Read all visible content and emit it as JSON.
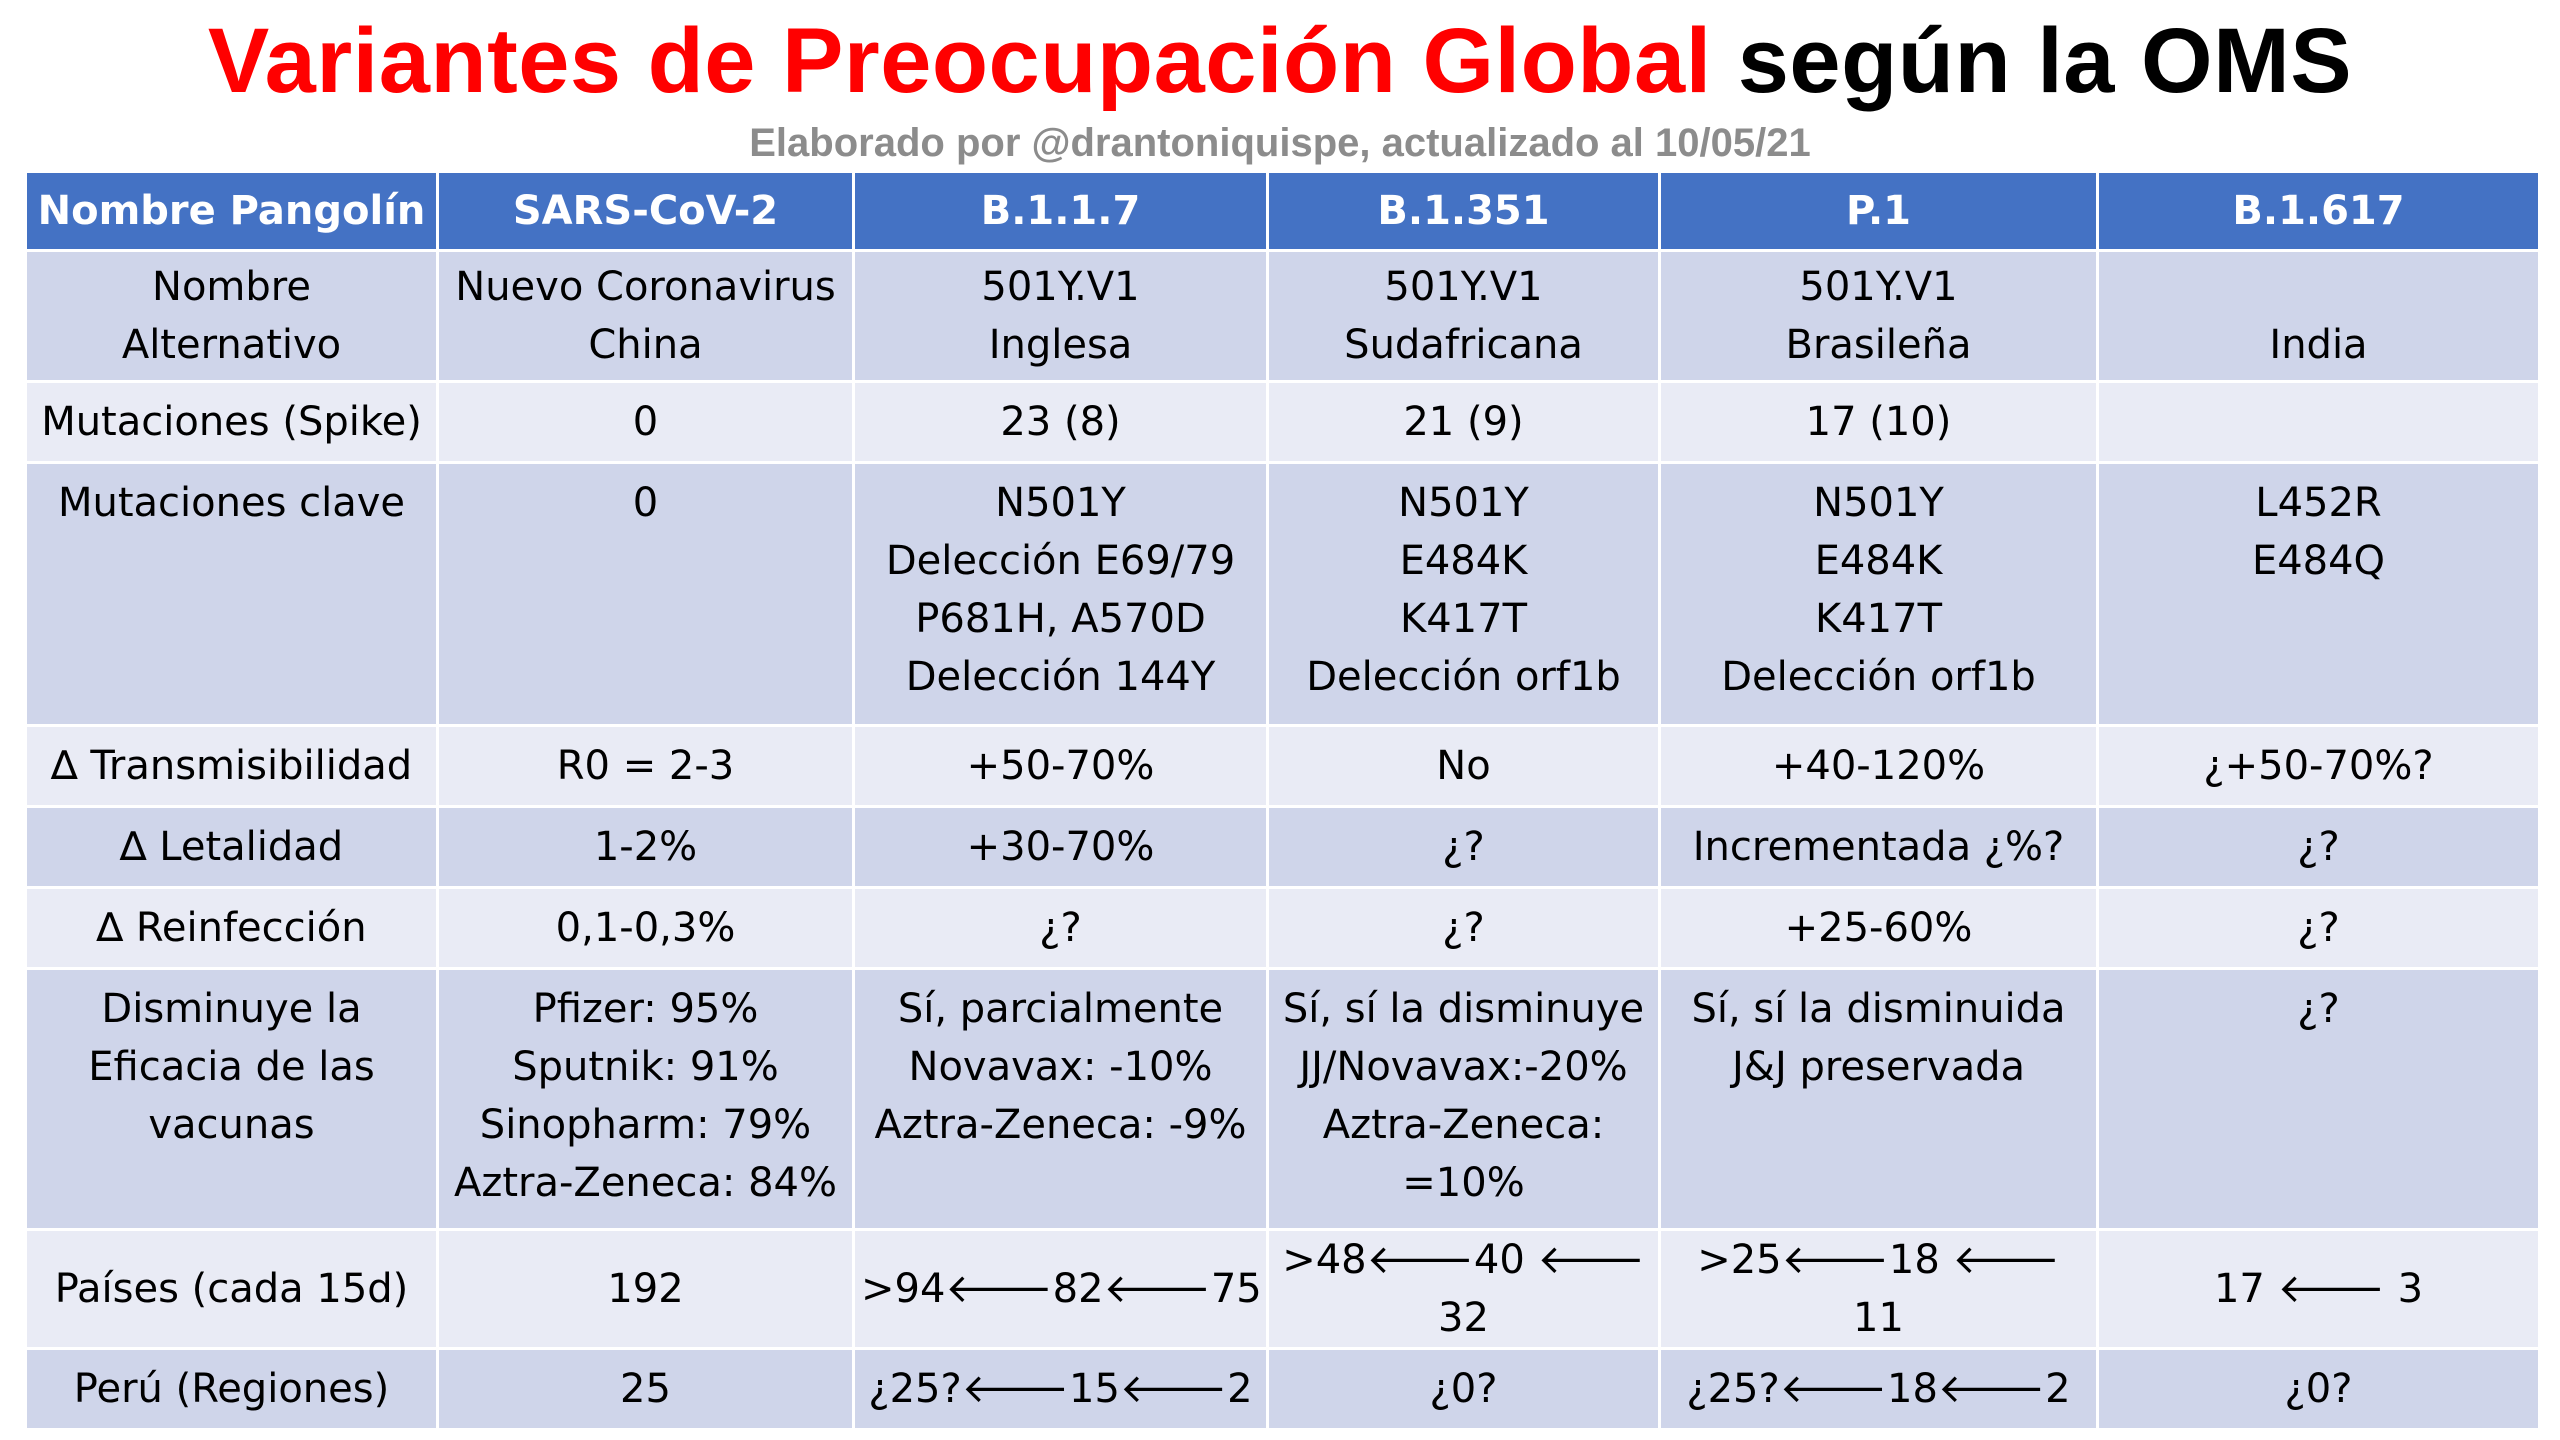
{
  "title": {
    "red": "Variantes de Preocupación Global",
    "black": "según la OMS"
  },
  "subtitle": "Elaborado por @drantoniquispe, actualizado al 10/05/21",
  "colors": {
    "header_bg": "#4472c4",
    "row_dark": "#cfd5ea",
    "row_light": "#e9ebf5",
    "title_red": "#ff0000",
    "subtitle_gray": "#8c8c8c"
  },
  "table": {
    "headers": [
      "Nombre Pangolín",
      "SARS-CoV-2",
      "B.1.1.7",
      "B.1.351",
      "P.1",
      "B.1.617"
    ],
    "rows": [
      {
        "label": [
          "Nombre",
          "Alternativo"
        ],
        "cells": [
          [
            "Nuevo Coronavirus",
            "China"
          ],
          [
            "501Y.V1",
            "Inglesa"
          ],
          [
            "501Y.V1",
            "Sudafricana"
          ],
          [
            "501Y.V1",
            "Brasileña"
          ],
          [
            "India"
          ]
        ]
      },
      {
        "label": [
          "Mutaciones (Spike)"
        ],
        "cells": [
          [
            "0"
          ],
          [
            "23 (8)"
          ],
          [
            "21 (9)"
          ],
          [
            "17 (10)"
          ],
          [
            ""
          ]
        ]
      },
      {
        "label": [
          "Mutaciones clave"
        ],
        "cells": [
          [
            "0"
          ],
          [
            "N501Y",
            "Delección E69/79",
            "P681H, A570D",
            "Delección 144Y"
          ],
          [
            "N501Y",
            "E484K",
            "K417T",
            "Delección orf1b"
          ],
          [
            "N501Y",
            "E484K",
            "K417T",
            "Delección orf1b"
          ],
          [
            "L452R",
            "E484Q"
          ]
        ]
      },
      {
        "label": [
          "∆ Transmisibilidad"
        ],
        "cells": [
          [
            "R0 = 2-3"
          ],
          [
            "+50-70%"
          ],
          [
            "No"
          ],
          [
            "+40-120%"
          ],
          [
            "¿+50-70%?"
          ]
        ]
      },
      {
        "label": [
          "∆ Letalidad"
        ],
        "cells": [
          [
            "1-2%"
          ],
          [
            "+30-70%"
          ],
          [
            "¿?"
          ],
          [
            "Incrementada ¿%?"
          ],
          [
            "¿?"
          ]
        ]
      },
      {
        "label": [
          "∆ Reinfección"
        ],
        "cells": [
          [
            "0,1-0,3%"
          ],
          [
            "¿?"
          ],
          [
            "¿?"
          ],
          [
            "+25-60%"
          ],
          [
            "¿?"
          ]
        ]
      },
      {
        "label": [
          "Disminuye la",
          "Eficacia de las",
          "vacunas"
        ],
        "cells": [
          [
            "Pfizer: 95%",
            "Sputnik: 91%",
            "Sinopharm: 79%",
            "Aztra-Zeneca: 84%"
          ],
          [
            "Sí, parcialmente",
            "Novavax: -10%",
            "Aztra-Zeneca: -9%"
          ],
          [
            "Sí, sí la disminuye",
            "JJ/Novavax:-20%",
            "Aztra-Zeneca:",
            "=10%"
          ],
          [
            "Sí, sí la disminuida",
            "J&J preservada"
          ],
          [
            "¿?"
          ]
        ]
      },
      {
        "label": [
          "Países (cada 15d)"
        ],
        "cells": [
          [
            "192"
          ],
          [
            ">94🡐82🡐75"
          ],
          [
            ">48🡐40 🡐 32"
          ],
          [
            ">25🡐18 🡐 11"
          ],
          [
            "17 🡐 3"
          ]
        ]
      },
      {
        "label": [
          "Perú (Regiones)"
        ],
        "cells": [
          [
            "25"
          ],
          [
            "¿25?🡐15🡐2"
          ],
          [
            "¿0?"
          ],
          [
            "¿25?🡐18🡐2"
          ],
          [
            "¿0?"
          ]
        ]
      }
    ]
  }
}
